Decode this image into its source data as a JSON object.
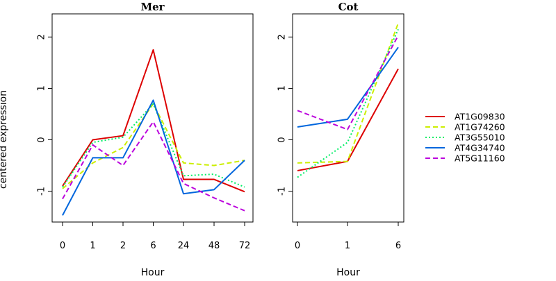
{
  "chart_data": {
    "type": "line",
    "ylabel": "centered expression",
    "ylim": [
      -1.6,
      2.45
    ],
    "yticks": [
      "-1",
      "0",
      "1",
      "2"
    ],
    "legend_position": "right",
    "series_meta": [
      {
        "name": "AT1G09830",
        "color": "#dd0000",
        "dash": "solid"
      },
      {
        "name": "AT1G74260",
        "color": "#ccee00",
        "dash": "dashed"
      },
      {
        "name": "AT3G55010",
        "color": "#00ee66",
        "dash": "dotted"
      },
      {
        "name": "AT4G34740",
        "color": "#0066dd",
        "dash": "solid"
      },
      {
        "name": "AT5G11160",
        "color": "#bb00dd",
        "dash": "dashed"
      }
    ],
    "panels": [
      {
        "title": "Mer",
        "xlabel": "Hour",
        "categories": [
          "0",
          "1",
          "2",
          "6",
          "24",
          "48",
          "72"
        ],
        "series": [
          {
            "name": "AT1G09830",
            "values": [
              -0.9,
              0.0,
              0.08,
              1.75,
              -0.77,
              -0.77,
              -1.01
            ]
          },
          {
            "name": "AT1G74260",
            "values": [
              -0.95,
              -0.45,
              -0.15,
              0.7,
              -0.45,
              -0.5,
              -0.4
            ]
          },
          {
            "name": "AT3G55010",
            "values": [
              -0.92,
              -0.05,
              0.05,
              0.7,
              -0.7,
              -0.67,
              -0.92
            ]
          },
          {
            "name": "AT4G34740",
            "values": [
              -1.47,
              -0.35,
              -0.35,
              0.77,
              -1.05,
              -0.97,
              -0.4
            ]
          },
          {
            "name": "AT5G11160",
            "values": [
              -1.15,
              -0.1,
              -0.5,
              0.35,
              -0.85,
              -1.13,
              -1.38
            ]
          }
        ]
      },
      {
        "title": "Cot",
        "xlabel": "Hour",
        "categories": [
          "0",
          "1",
          "6"
        ],
        "series": [
          {
            "name": "AT1G09830",
            "values": [
              -0.6,
              -0.42,
              1.38
            ]
          },
          {
            "name": "AT1G74260",
            "values": [
              -0.45,
              -0.42,
              2.27
            ]
          },
          {
            "name": "AT3G55010",
            "values": [
              -0.73,
              -0.05,
              2.15
            ]
          },
          {
            "name": "AT4G34740",
            "values": [
              0.25,
              0.4,
              1.8
            ]
          },
          {
            "name": "AT5G11160",
            "values": [
              0.57,
              0.2,
              2.03
            ]
          }
        ]
      }
    ]
  }
}
